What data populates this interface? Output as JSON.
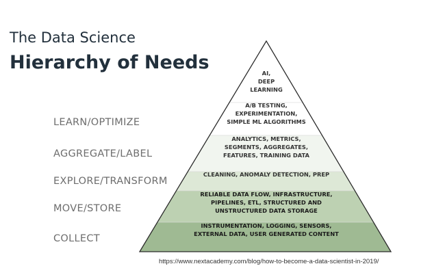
{
  "title": {
    "line1": "The Data Science",
    "line2": "Hierarchy of Needs"
  },
  "side_labels": [
    "LEARN/OPTIMIZE",
    "AGGREGATE/LABEL",
    "EXPLORE/TRANSFORM",
    "MOVE/STORE",
    "COLLECT"
  ],
  "pyramid": {
    "tiers": [
      {
        "lines": [
          "AI,",
          "DEEP",
          "LEARNING"
        ],
        "color": "#ffffff"
      },
      {
        "lines": [
          "A/B TESTING,",
          "EXPERIMENTATION,",
          "SIMPLE ML ALGORITHMS"
        ],
        "color": "#ffffff"
      },
      {
        "lines": [
          "ANALYTICS, METRICS,",
          "SEGMENTS, AGGREGATES,",
          "FEATURES, TRAINING DATA"
        ],
        "color": "#f1f5ef"
      },
      {
        "lines": [
          "CLEANING, ANOMALY DETECTION, PREP"
        ],
        "color": "#dde8d6"
      },
      {
        "lines": [
          "RELIABLE DATA FLOW, INFRASTRUCTURE,",
          "PIPELINES, ETL, STRUCTURED AND",
          "UNSTRUCTURED DATA STORAGE"
        ],
        "color": "#bdd1b2"
      },
      {
        "lines": [
          "INSTRUMENTATION, LOGGING, SENSORS,",
          "EXTERNAL DATA, USER GENERATED CONTENT"
        ],
        "color": "#9fba93"
      }
    ],
    "outline_color": "#2b2b2b"
  },
  "source_url": "https://www.nextacademy.com/blog/how-to-become-a-data-scientist-in-2019/"
}
